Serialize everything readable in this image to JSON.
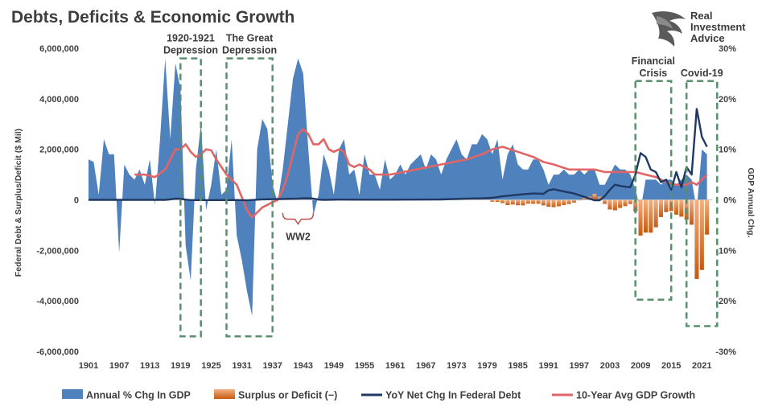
{
  "title": "Debts, Deficits & Economic Growth",
  "brand": {
    "lines": [
      "Real",
      "Investment",
      "Advice"
    ]
  },
  "chart_data": {
    "type": "area",
    "title": "Debts, Deficits & Economic Growth",
    "ylabel_left": "Federal Debt & Surplus/Deficit ($ Mil)",
    "ylabel_right": "GDP Annual Chg.",
    "ylim_left": [
      -6000000,
      6000000
    ],
    "ylim_right": [
      -30,
      30
    ],
    "x_range": [
      1901,
      2023
    ],
    "left_ticks": [
      {
        "v": 6000000,
        "label": "6,000,000"
      },
      {
        "v": 4000000,
        "label": "4,000,000"
      },
      {
        "v": 2000000,
        "label": "2,000,000"
      },
      {
        "v": 0,
        "label": "0"
      },
      {
        "v": -2000000,
        "label": "-2,000,000"
      },
      {
        "v": -4000000,
        "label": "-4,000,000"
      },
      {
        "v": -6000000,
        "label": "-6,000,000"
      }
    ],
    "right_ticks": [
      {
        "v": 30,
        "label": "30%"
      },
      {
        "v": 20,
        "label": "20%"
      },
      {
        "v": 10,
        "label": "10%"
      },
      {
        "v": 0,
        "label": "0%"
      },
      {
        "v": -10,
        "label": "-10%"
      },
      {
        "v": -20,
        "label": "-20%"
      },
      {
        "v": -30,
        "label": "-30%"
      }
    ],
    "x_ticks": [
      1901,
      1907,
      1913,
      1919,
      1925,
      1931,
      1937,
      1943,
      1949,
      1955,
      1961,
      1967,
      1973,
      1979,
      1985,
      1991,
      1997,
      2003,
      2009,
      2015,
      2021
    ],
    "legend_position": "bottom",
    "series": [
      {
        "name": "Annual % Chg In GDP",
        "color": "#4f81bd",
        "kind": "area",
        "axis": "right",
        "x": [
          1901,
          1902,
          1903,
          1904,
          1905,
          1906,
          1907,
          1908,
          1909,
          1910,
          1911,
          1912,
          1913,
          1914,
          1915,
          1916,
          1917,
          1918,
          1919,
          1920,
          1921,
          1922,
          1923,
          1924,
          1925,
          1926,
          1927,
          1928,
          1929,
          1930,
          1931,
          1932,
          1933,
          1934,
          1935,
          1936,
          1937,
          1938,
          1939,
          1940,
          1941,
          1942,
          1943,
          1944,
          1945,
          1946,
          1947,
          1948,
          1949,
          1950,
          1951,
          1952,
          1953,
          1954,
          1955,
          1956,
          1957,
          1958,
          1959,
          1960,
          1961,
          1962,
          1963,
          1964,
          1965,
          1966,
          1967,
          1968,
          1969,
          1970,
          1971,
          1972,
          1973,
          1974,
          1975,
          1976,
          1977,
          1978,
          1979,
          1980,
          1981,
          1982,
          1983,
          1984,
          1985,
          1986,
          1987,
          1988,
          1989,
          1990,
          1991,
          1992,
          1993,
          1994,
          1995,
          1996,
          1997,
          1998,
          1999,
          2000,
          2001,
          2002,
          2003,
          2004,
          2005,
          2006,
          2007,
          2008,
          2009,
          2010,
          2011,
          2012,
          2013,
          2014,
          2015,
          2016,
          2017,
          2018,
          2019,
          2020,
          2021,
          2022
        ],
        "values": [
          8,
          7.5,
          1,
          12,
          9,
          9,
          -10.5,
          7,
          5,
          4,
          6,
          3,
          8,
          -1,
          12,
          28,
          12,
          27,
          22,
          -9,
          -16,
          6,
          15,
          -2,
          3,
          10,
          1,
          2,
          12,
          -7,
          -12,
          -18,
          -23,
          10,
          16,
          14,
          3,
          -0.5,
          6,
          15,
          24,
          28,
          25,
          10,
          -3,
          1,
          9,
          6,
          1,
          10,
          12,
          5,
          6,
          1,
          9,
          5,
          5,
          2,
          8,
          4,
          5,
          7,
          5,
          7,
          8,
          9,
          6,
          9,
          8,
          5,
          8,
          10,
          12,
          9,
          8,
          11,
          11,
          13,
          12,
          9,
          12,
          4,
          9,
          11,
          7,
          6,
          6,
          8,
          8,
          6,
          3,
          5,
          5,
          6,
          5,
          5,
          6,
          5,
          6,
          6,
          3,
          3,
          5,
          7,
          6,
          6,
          5,
          2,
          -2,
          4,
          4,
          4,
          3,
          4,
          4,
          3,
          4,
          5,
          4,
          -2,
          10,
          9
        ]
      },
      {
        "name": "Surplus or Deficit (−)",
        "color": "#e07b39",
        "kind": "area",
        "axis": "left",
        "x": [
          1980,
          1981,
          1982,
          1983,
          1984,
          1985,
          1986,
          1987,
          1988,
          1989,
          1990,
          1991,
          1992,
          1993,
          1994,
          1995,
          1996,
          1997,
          1998,
          1999,
          2000,
          2001,
          2002,
          2003,
          2004,
          2005,
          2006,
          2007,
          2008,
          2009,
          2010,
          2011,
          2012,
          2013,
          2014,
          2015,
          2016,
          2017,
          2018,
          2019,
          2020,
          2021,
          2022
        ],
        "values": [
          -74000,
          -79000,
          -128000,
          -208000,
          -185000,
          -212000,
          -221000,
          -150000,
          -155000,
          -152000,
          -221000,
          -269000,
          -290000,
          -255000,
          -203000,
          -164000,
          -107000,
          -22000,
          69000,
          126000,
          236000,
          128000,
          -158000,
          -378000,
          -413000,
          -318000,
          -248000,
          -161000,
          -459000,
          -1413000,
          -1294000,
          -1300000,
          -1087000,
          -680000,
          -485000,
          -442000,
          -585000,
          -665000,
          -779000,
          -984000,
          -3132000,
          -2775000,
          -1375000
        ]
      },
      {
        "name": "YoY Net Chg In Federal Debt",
        "color": "#1f3864",
        "kind": "line",
        "axis": "left",
        "x": [
          1901,
          1910,
          1916,
          1917,
          1918,
          1919,
          1920,
          1921,
          1925,
          1930,
          1932,
          1935,
          1938,
          1940,
          1942,
          1943,
          1944,
          1945,
          1946,
          1947,
          1950,
          1955,
          1960,
          1965,
          1970,
          1975,
          1978,
          1980,
          1982,
          1984,
          1986,
          1988,
          1990,
          1991,
          1992,
          1994,
          1996,
          1998,
          2000,
          2001,
          2002,
          2003,
          2004,
          2005,
          2006,
          2007,
          2008,
          2009,
          2010,
          2011,
          2012,
          2013,
          2014,
          2015,
          2016,
          2017,
          2018,
          2019,
          2020,
          2021,
          2022
        ],
        "values": [
          0,
          0,
          0,
          20000,
          50000,
          40000,
          10000,
          -10000,
          -10000,
          -5000,
          -20000,
          20000,
          30000,
          40000,
          50000,
          60000,
          60000,
          50000,
          10000,
          0,
          10000,
          5000,
          5000,
          10000,
          15000,
          50000,
          60000,
          80000,
          140000,
          180000,
          220000,
          250000,
          240000,
          380000,
          420000,
          330000,
          250000,
          120000,
          -20000,
          -20000,
          150000,
          400000,
          600000,
          550000,
          520000,
          500000,
          1000000,
          1850000,
          1700000,
          1200000,
          1100000,
          700000,
          800000,
          400000,
          1100000,
          500000,
          1300000,
          1000000,
          3600000,
          2500000,
          2100000
        ]
      },
      {
        "name": "10-Year Avg GDP Growth",
        "color": "#e06666",
        "kind": "line",
        "axis": "right",
        "x": [
          1910,
          1912,
          1914,
          1916,
          1918,
          1919,
          1920,
          1921,
          1922,
          1923,
          1924,
          1925,
          1926,
          1927,
          1928,
          1929,
          1930,
          1931,
          1932,
          1933,
          1934,
          1935,
          1936,
          1937,
          1938,
          1939,
          1940,
          1941,
          1942,
          1943,
          1944,
          1945,
          1946,
          1947,
          1948,
          1949,
          1950,
          1951,
          1952,
          1953,
          1954,
          1955,
          1956,
          1957,
          1958,
          1960,
          1965,
          1970,
          1975,
          1978,
          1980,
          1982,
          1985,
          1988,
          1990,
          1992,
          1995,
          1998,
          2000,
          2002,
          2005,
          2008,
          2010,
          2012,
          2014,
          2016,
          2018,
          2019,
          2020,
          2021,
          2022
        ],
        "values": [
          5,
          5,
          4.5,
          6,
          10,
          10,
          11,
          9.5,
          8.5,
          9,
          10,
          9.8,
          8,
          6.5,
          5,
          4,
          3,
          0.5,
          -2,
          -3.5,
          -2.5,
          -1.5,
          -1,
          -0.5,
          0,
          2,
          5,
          9,
          13,
          14,
          13,
          11,
          11,
          12,
          10,
          9.5,
          10,
          9.5,
          7,
          6.5,
          7,
          6.5,
          6,
          5,
          5,
          5,
          6,
          7,
          8,
          9,
          10,
          10.5,
          9.5,
          8.5,
          7.5,
          7,
          6,
          6,
          6,
          5.5,
          5.5,
          5.5,
          5,
          4.5,
          3.5,
          3,
          3,
          3.5,
          3,
          4,
          5
        ]
      }
    ],
    "annotations": [
      {
        "label": [
          "1920-1921",
          "Depression"
        ],
        "x_range": [
          1919,
          1923
        ],
        "y_range": [
          5600000,
          -5400000
        ]
      },
      {
        "label": [
          "The Great",
          "Depression"
        ],
        "x_range": [
          1928,
          1937
        ],
        "y_range": [
          5600000,
          -5400000
        ]
      },
      {
        "label": [
          "WW2"
        ],
        "bracket": [
          1939,
          1945
        ]
      },
      {
        "label": [
          "Financial",
          "Crisis"
        ],
        "x_range": [
          2008,
          2015
        ],
        "y_range": [
          4700000,
          -3950000
        ]
      },
      {
        "label": [
          "Covid-19"
        ],
        "x_range": [
          2018,
          2024
        ],
        "y_range": [
          4700000,
          -5000000
        ]
      }
    ]
  }
}
